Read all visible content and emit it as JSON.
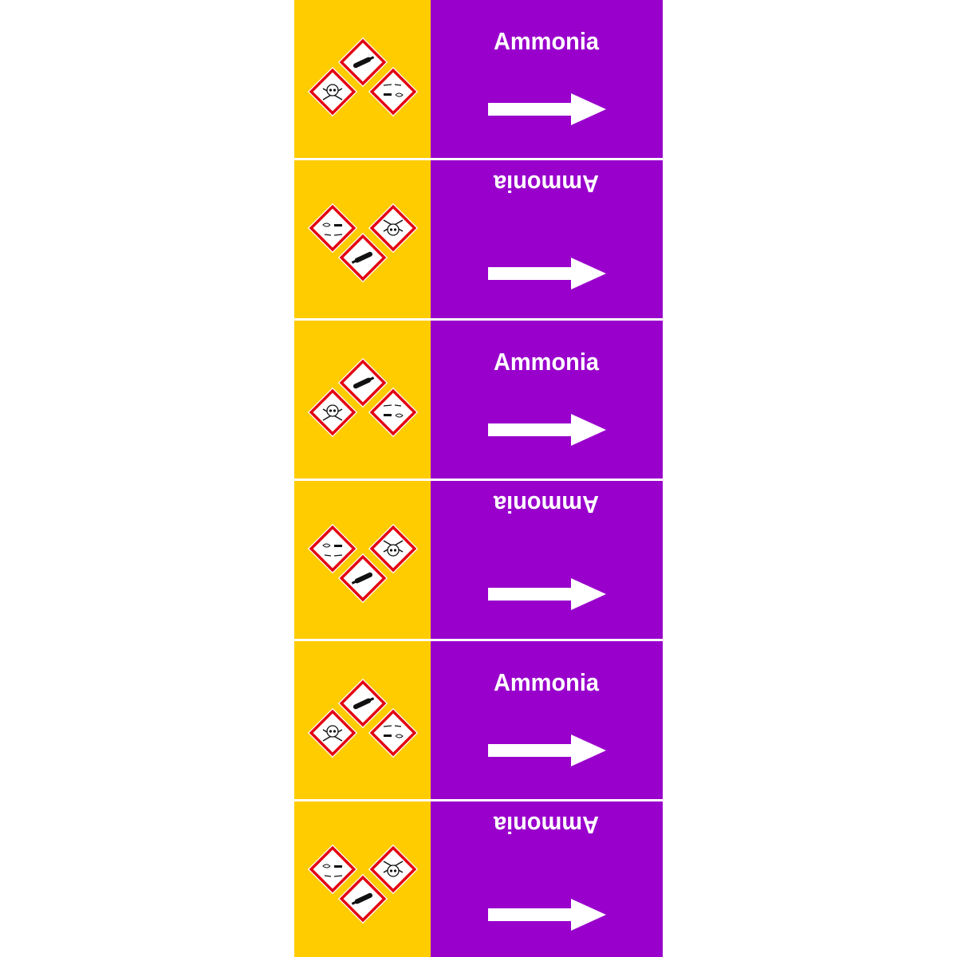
{
  "marker": {
    "colors": {
      "hazard_field": "#FFCC00",
      "pipe_field": "#9900CC",
      "text": "#FFFFFF",
      "pictogram_border": "#E30613"
    },
    "pictograms": [
      "gas-cylinder-icon",
      "skull-crossbones-icon",
      "corrosion-icon"
    ],
    "flow_direction": "right",
    "segments": [
      {
        "label": "Ammonia",
        "inverted": false
      },
      {
        "label": "Ammonia",
        "inverted": true
      },
      {
        "label": "Ammonia",
        "inverted": false
      },
      {
        "label": "Ammonia",
        "inverted": true
      },
      {
        "label": "Ammonia",
        "inverted": false
      },
      {
        "label": "Ammonia",
        "inverted": true
      }
    ]
  }
}
